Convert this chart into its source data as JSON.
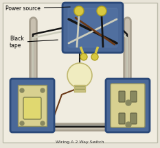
{
  "fig_bg": "#e8e4d8",
  "bg_inner": "#dedad0",
  "title": "Power source",
  "black_tape_label": "Black\ntape",
  "blue_box": "#4a6898",
  "blue_box_edge": "#2a4878",
  "blue_box_light": "#6080b0",
  "wire_black": "#151515",
  "wire_white": "#ccccbb",
  "wire_gray": "#888880",
  "wire_brown": "#6b3a18",
  "wire_yellow_nut": "#d8c840",
  "conduit_outer": "#a8a090",
  "conduit_inner": "#c8c0b0",
  "switch_cream": "#d8d090",
  "outlet_cream": "#d8d090",
  "bulb_color": "#f0ecc0",
  "bulb_edge": "#c0b870"
}
